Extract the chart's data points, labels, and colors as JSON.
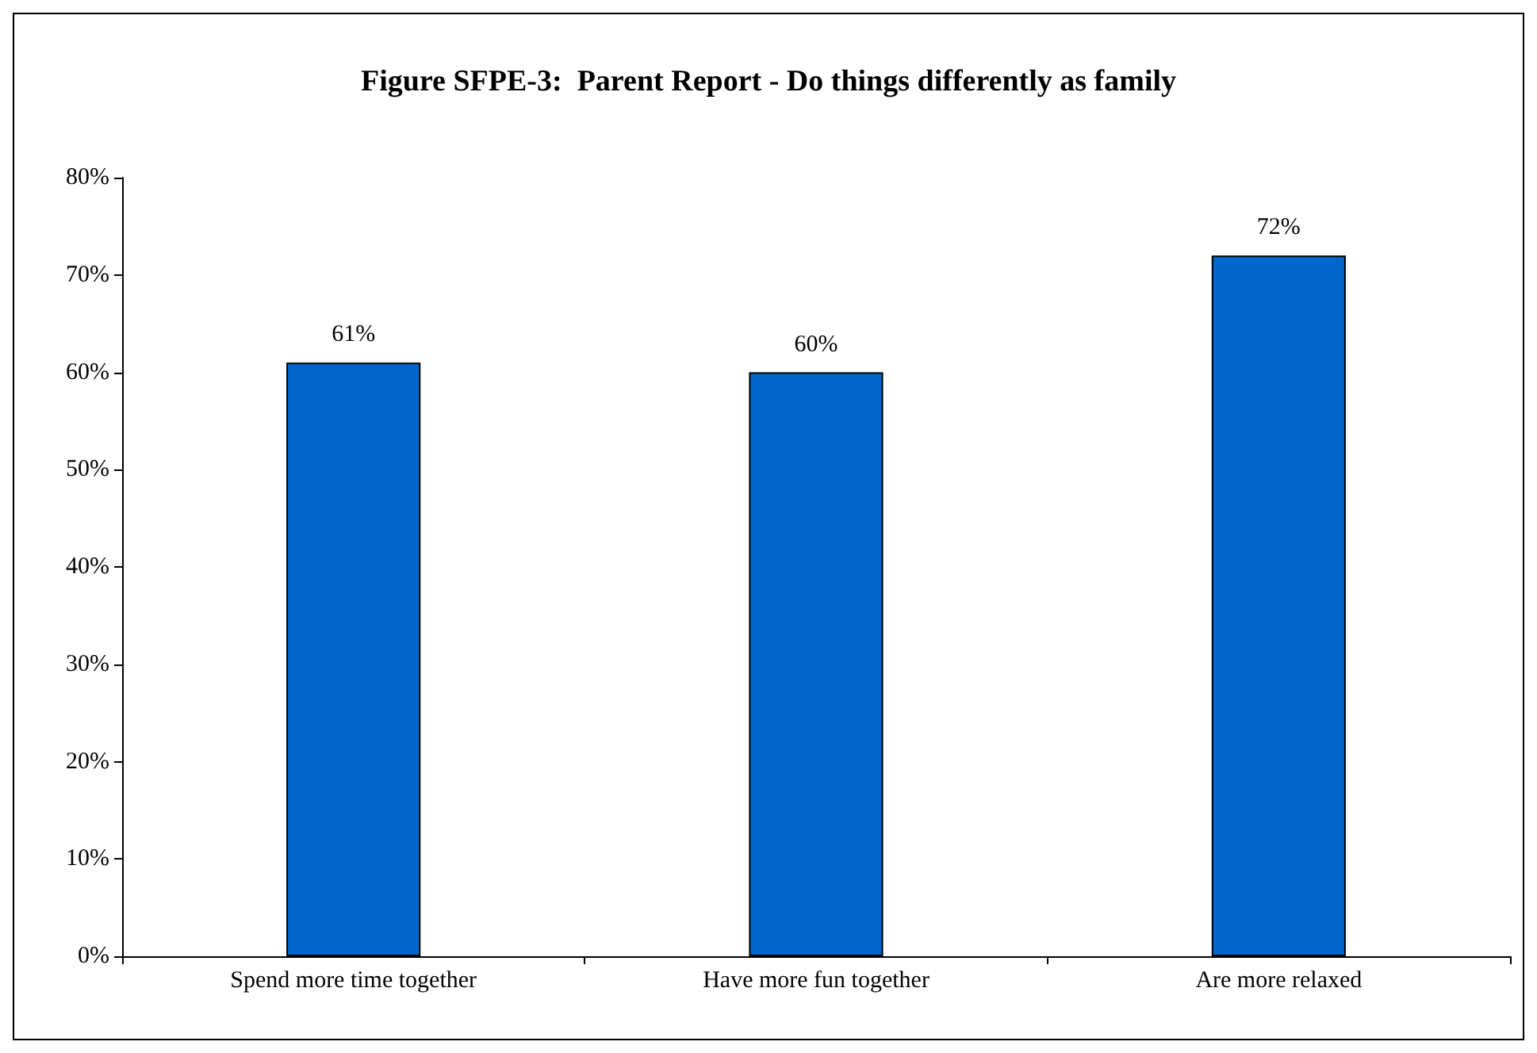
{
  "chart_data": {
    "type": "bar",
    "title": "Figure SFPE-3:  Parent Report - Do things differently as family",
    "categories": [
      "Spend more time together",
      "Have more fun together",
      "Are more relaxed"
    ],
    "values": [
      61,
      60,
      72
    ],
    "value_labels": [
      "61%",
      "60%",
      "72%"
    ],
    "color": "#0066cc",
    "ylim": [
      0,
      80
    ],
    "yticks": [
      {
        "value": 0,
        "label": "0%"
      },
      {
        "value": 10,
        "label": "10%"
      },
      {
        "value": 20,
        "label": "20%"
      },
      {
        "value": 30,
        "label": "30%"
      },
      {
        "value": 40,
        "label": "40%"
      },
      {
        "value": 50,
        "label": "50%"
      },
      {
        "value": 60,
        "label": "60%"
      },
      {
        "value": 70,
        "label": "70%"
      },
      {
        "value": 80,
        "label": "80%"
      }
    ],
    "grid": false
  }
}
